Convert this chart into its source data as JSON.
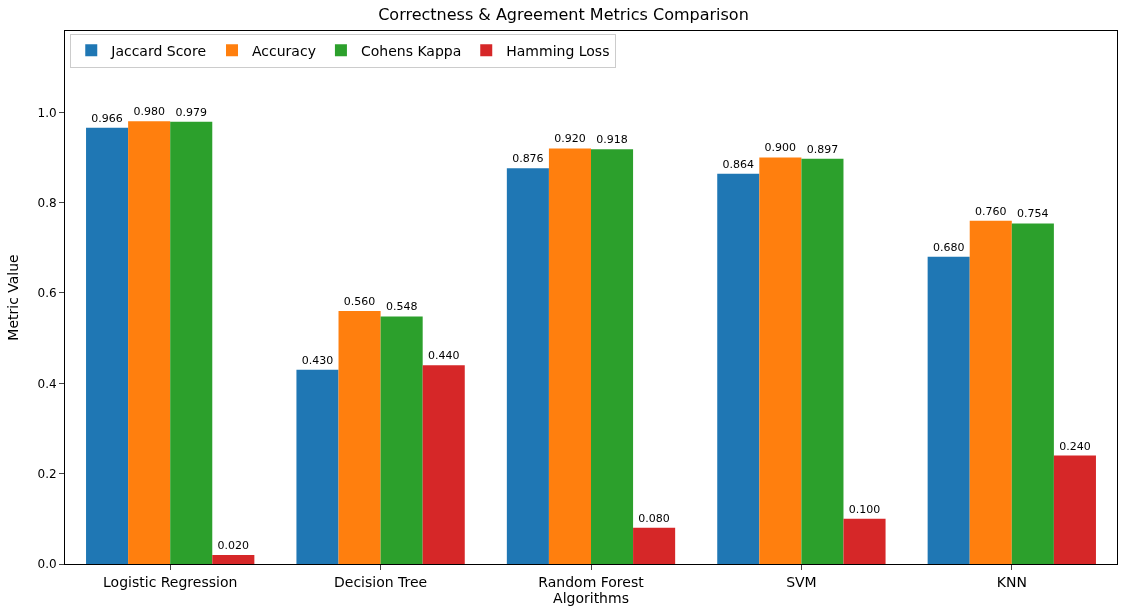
{
  "chart_data": {
    "type": "bar",
    "title": "Correctness & Agreement Metrics Comparison",
    "xlabel": "Algorithms",
    "ylabel": "Metric Value",
    "categories": [
      "Logistic Regression",
      "Decision Tree",
      "Random Forest",
      "SVM",
      "KNN"
    ],
    "series": [
      {
        "name": "Jaccard Score",
        "color": "#1f77b4",
        "values": [
          0.966,
          0.43,
          0.876,
          0.864,
          0.68
        ],
        "value_labels": [
          "0.966",
          "0.430",
          "0.876",
          "0.864",
          "0.680"
        ]
      },
      {
        "name": "Accuracy",
        "color": "#ff7f0e",
        "values": [
          0.98,
          0.56,
          0.92,
          0.9,
          0.76
        ],
        "value_labels": [
          "0.980",
          "0.560",
          "0.920",
          "0.900",
          "0.760"
        ]
      },
      {
        "name": "Cohens Kappa",
        "color": "#2ca02c",
        "values": [
          0.979,
          0.548,
          0.918,
          0.897,
          0.754
        ],
        "value_labels": [
          "0.979",
          "0.548",
          "0.918",
          "0.897",
          "0.754"
        ]
      },
      {
        "name": "Hamming Loss",
        "color": "#d62728",
        "values": [
          0.02,
          0.44,
          0.08,
          0.1,
          0.24
        ],
        "value_labels": [
          "0.020",
          "0.440",
          "0.080",
          "0.100",
          "0.240"
        ]
      }
    ],
    "ylim": [
      0,
      1.18
    ],
    "yticks": [
      {
        "value": 0,
        "label": "0.0"
      },
      {
        "value": 0.2,
        "label": "0.2"
      },
      {
        "value": 0.4,
        "label": "0.4"
      },
      {
        "value": 0.6,
        "label": "0.6"
      },
      {
        "value": 0.8,
        "label": "0.8"
      },
      {
        "value": 1.0,
        "label": "1.0"
      }
    ],
    "legend": "top left"
  }
}
